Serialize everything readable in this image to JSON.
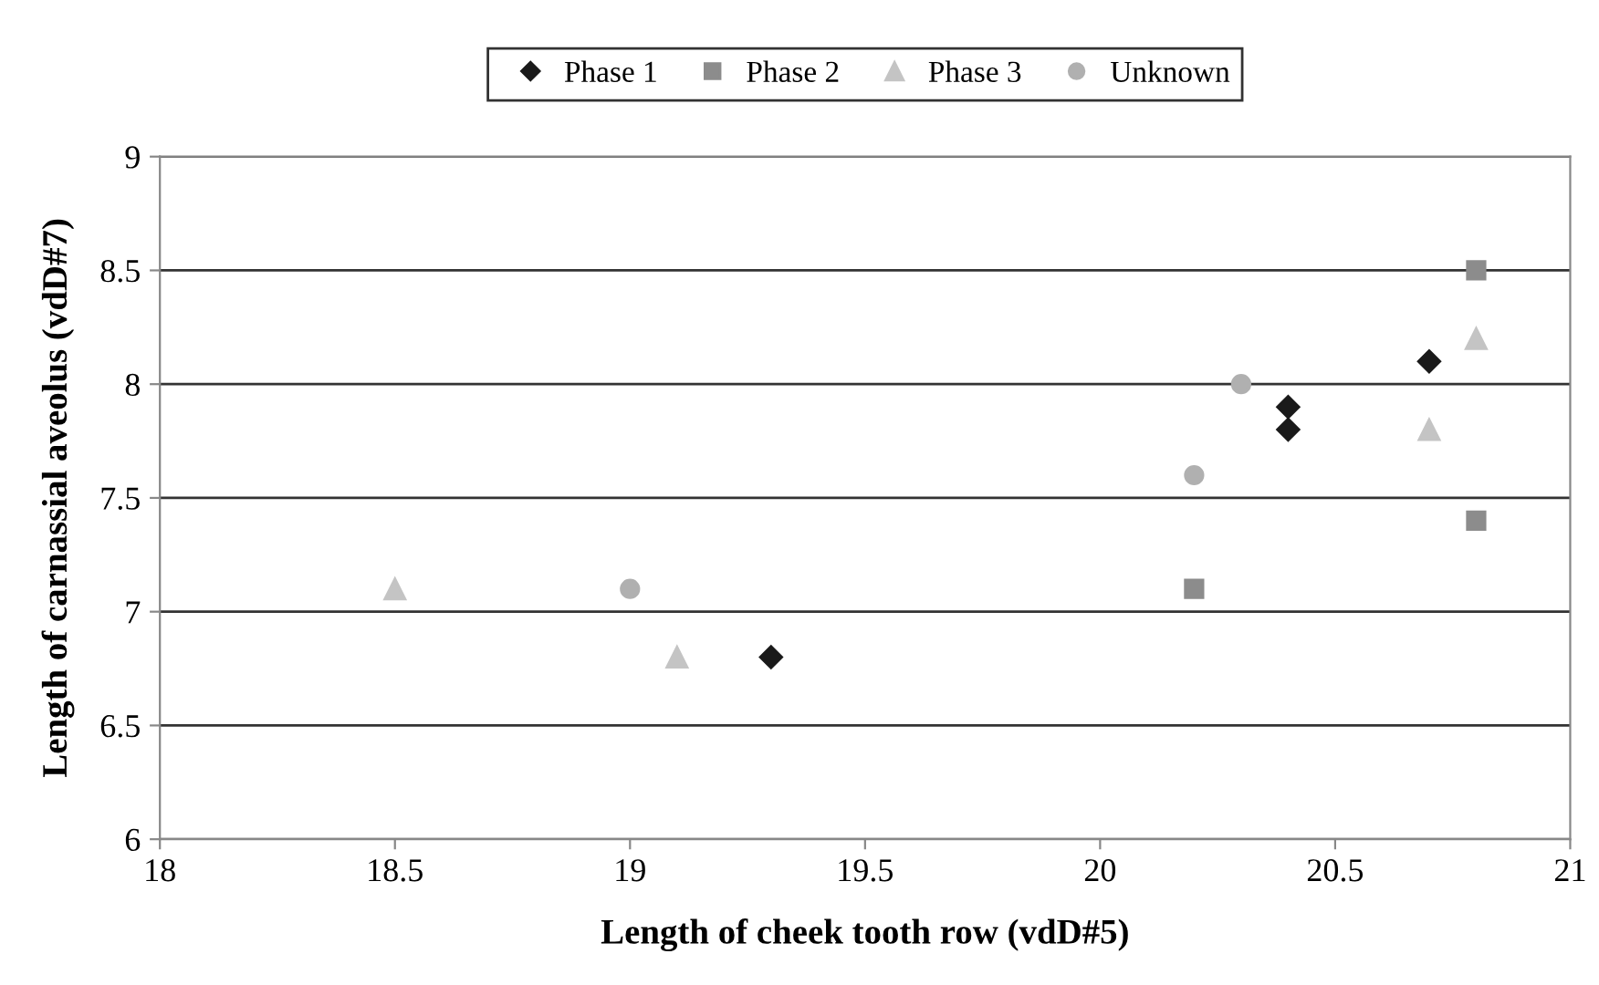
{
  "chart_data": {
    "type": "scatter",
    "xlabel": "Length of cheek tooth row (vdD#5)",
    "ylabel": "Length of carnassial aveolus (vdD#7)",
    "xlim": [
      18,
      21
    ],
    "xticks": [
      18,
      18.5,
      19,
      19.5,
      20,
      20.5,
      21
    ],
    "ylim": [
      6,
      9
    ],
    "yticks": [
      6,
      6.5,
      7,
      7.5,
      8,
      8.5,
      9
    ],
    "grid": "y",
    "legend": "top",
    "series": [
      {
        "name": "Phase 1",
        "color": "#1a1a1a",
        "marker": "diamond",
        "x": [
          19.3,
          20.4,
          20.4,
          20.7
        ],
        "values": [
          6.8,
          7.9,
          7.8,
          8.1
        ]
      },
      {
        "name": "Phase 2",
        "color": "#8c8c8c",
        "marker": "square",
        "x": [
          20.2,
          20.8,
          20.8
        ],
        "values": [
          7.1,
          8.5,
          7.4
        ]
      },
      {
        "name": "Phase 3",
        "color": "#c4c4c4",
        "marker": "triangle",
        "x": [
          18.5,
          19.1,
          20.7,
          20.8
        ],
        "values": [
          7.1,
          6.8,
          7.8,
          8.2
        ]
      },
      {
        "name": "Unknown",
        "color": "#b0b0b0",
        "marker": "circle",
        "x": [
          19.0,
          20.2,
          20.3
        ],
        "values": [
          7.1,
          7.6,
          8.0
        ]
      }
    ]
  }
}
